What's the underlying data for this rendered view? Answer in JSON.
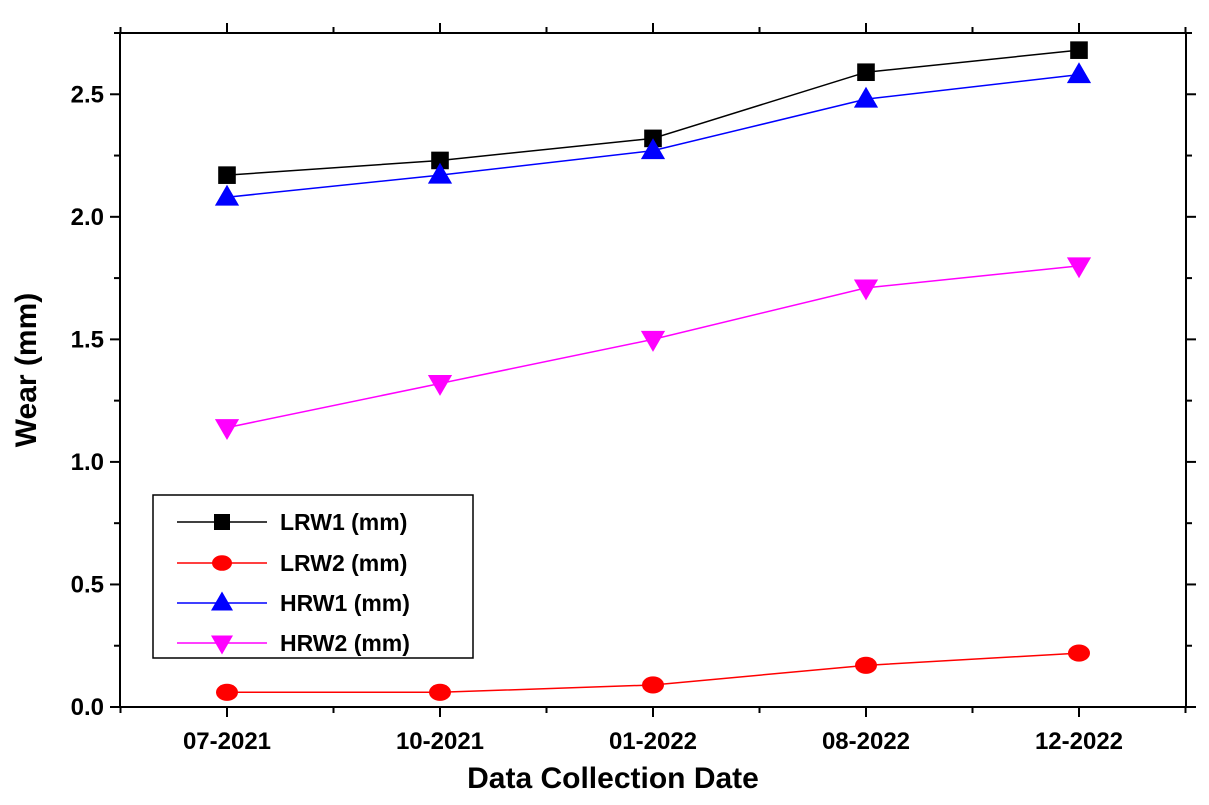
{
  "chart_data": {
    "type": "line",
    "categories": [
      "07-2021",
      "10-2021",
      "01-2022",
      "08-2022",
      "12-2022"
    ],
    "xlabel": "Data Collection Date",
    "ylabel": "Wear (mm)",
    "ylim": [
      0.0,
      2.75
    ],
    "yticks": [
      "0.0",
      "0.5",
      "1.0",
      "1.5",
      "2.0",
      "2.5"
    ],
    "grid": false,
    "legend_position": "lower-left",
    "series": [
      {
        "name": "LRW1 (mm)",
        "color": "#000000",
        "marker": "square",
        "values": [
          2.17,
          2.23,
          2.32,
          2.59,
          2.68
        ]
      },
      {
        "name": "LRW2 (mm)",
        "color": "#ff0000",
        "marker": "circle",
        "values": [
          0.06,
          0.06,
          0.09,
          0.17,
          0.22
        ]
      },
      {
        "name": "HRW1 (mm)",
        "color": "#0000ff",
        "marker": "triangle-up",
        "values": [
          2.08,
          2.17,
          2.27,
          2.48,
          2.58
        ]
      },
      {
        "name": "HRW2 (mm)",
        "color": "#ff00ff",
        "marker": "triangle-down",
        "values": [
          1.14,
          1.32,
          1.5,
          1.71,
          1.8
        ]
      }
    ]
  }
}
